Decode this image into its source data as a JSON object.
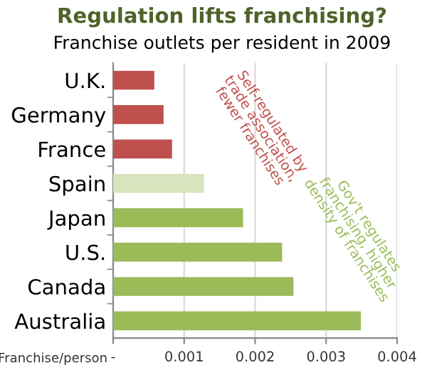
{
  "chart_data": {
    "type": "bar",
    "orientation": "horizontal",
    "title": "Regulation lifts franchising?",
    "subtitle": "Franchise outlets per resident in 2009",
    "xlabel": "Franchise/person",
    "categories": [
      "U.K.",
      "Germany",
      "France",
      "Spain",
      "Japan",
      "U.S.",
      "Canada",
      "Australia"
    ],
    "values": [
      0.00058,
      0.00071,
      0.00083,
      0.00128,
      0.00183,
      0.00238,
      0.00254,
      0.00349
    ],
    "colors": [
      "#c0504d",
      "#c0504d",
      "#c0504d",
      "#d7e4bd",
      "#9bbb59",
      "#9bbb59",
      "#9bbb59",
      "#9bbb59"
    ],
    "xlim": [
      0,
      0.004
    ],
    "xticks": [
      {
        "value": 0,
        "label": "-"
      },
      0.001,
      0.002,
      0.003,
      0.004
    ],
    "grid": "x",
    "annotations": [
      "Self-regulated by\ntrade association,\nfewer franchises",
      "Gov't regulates\nfranchising, higher\ndensity of franchises"
    ]
  }
}
